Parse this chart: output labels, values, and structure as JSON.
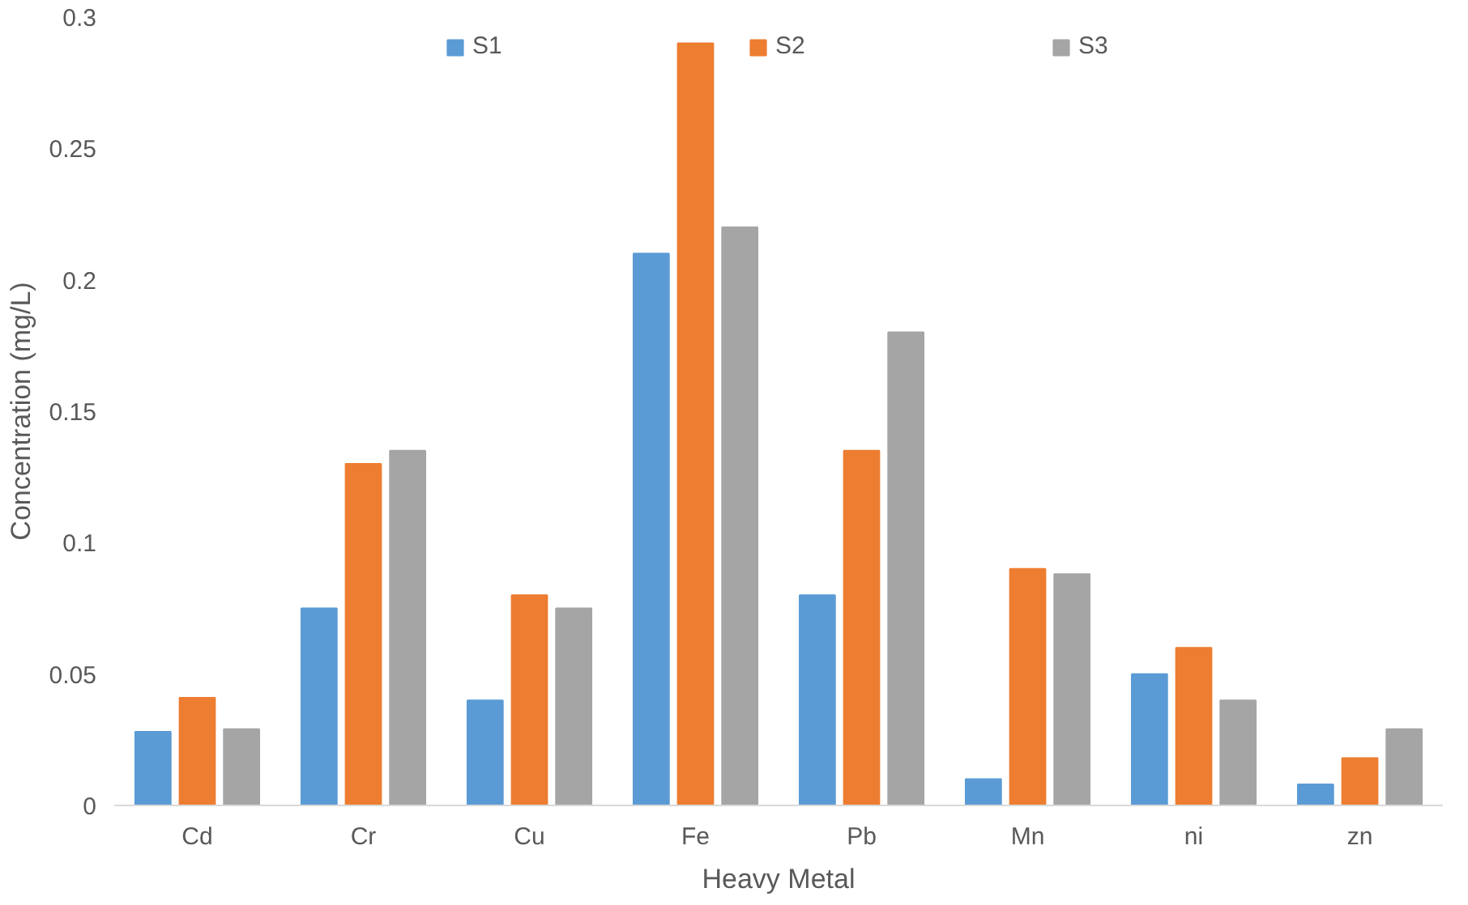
{
  "chart_data": {
    "type": "bar",
    "xlabel": "Heavy Metal",
    "ylabel": "Concentration (mg/L)",
    "categories": [
      "Cd",
      "Cr",
      "Cu",
      "Fe",
      "Pb",
      "Mn",
      "ni",
      "zn"
    ],
    "series": [
      {
        "name": "S1",
        "color": "#5b9bd5",
        "values": [
          0.028,
          0.075,
          0.04,
          0.21,
          0.08,
          0.01,
          0.05,
          0.008
        ]
      },
      {
        "name": "S2",
        "color": "#ed7d31",
        "values": [
          0.041,
          0.13,
          0.08,
          0.29,
          0.135,
          0.09,
          0.06,
          0.018
        ]
      },
      {
        "name": "S3",
        "color": "#a5a5a5",
        "values": [
          0.029,
          0.135,
          0.075,
          0.22,
          0.18,
          0.088,
          0.04,
          0.029
        ]
      }
    ],
    "ylim": [
      0,
      0.3
    ],
    "yticks": [
      0,
      0.05,
      0.1,
      0.15,
      0.2,
      0.25,
      0.3
    ],
    "grid": false,
    "legend": "top"
  }
}
